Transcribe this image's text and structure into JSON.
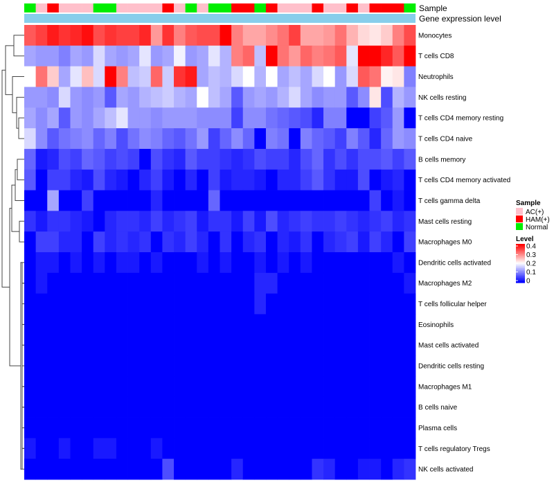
{
  "chart_data": {
    "type": "heatmap",
    "title": "",
    "annotation_labels": {
      "sample": "Sample",
      "gene_expression": "Gene expression level"
    },
    "rows": [
      "Monocytes",
      "T cells CD8",
      "Neutrophils",
      "NK cells resting",
      "T cells CD4 memory resting",
      "T cells CD4 naive",
      "B cells memory",
      "T cells CD4 memory activated",
      "T cells gamma delta",
      "Mast cells resting",
      "Macrophages M0",
      "Dendritic cells activated",
      "Macrophages M2",
      "T cells follicular helper",
      "Eosinophils",
      "Mast cells activated",
      "Dendritic cells resting",
      "Macrophages M1",
      "B cells naive",
      "Plasma cells",
      "T cells regulatory  Tregs",
      "NK cells activated"
    ],
    "sample_groups": [
      "Normal",
      "AC(+)",
      "HAM(+)",
      "AC(+)",
      "AC(+)",
      "AC(+)",
      "Normal",
      "Normal",
      "AC(+)",
      "AC(+)",
      "AC(+)",
      "AC(+)",
      "HAM(+)",
      "AC(+)",
      "Normal",
      "AC(+)",
      "Normal",
      "Normal",
      "HAM(+)",
      "HAM(+)",
      "Normal",
      "HAM(+)",
      "AC(+)",
      "AC(+)",
      "AC(+)",
      "HAM(+)",
      "AC(+)",
      "AC(+)",
      "HAM(+)",
      "AC(+)",
      "HAM(+)",
      "HAM(+)",
      "HAM(+)",
      "Normal"
    ],
    "values": [
      [
        0.33,
        0.35,
        0.38,
        0.36,
        0.37,
        0.39,
        0.34,
        0.36,
        0.35,
        0.35,
        0.37,
        0.28,
        0.36,
        0.3,
        0.33,
        0.34,
        0.34,
        0.4,
        0.3,
        0.27,
        0.27,
        0.29,
        0.31,
        0.35,
        0.27,
        0.27,
        0.28,
        0.31,
        0.26,
        0.23,
        0.22,
        0.24,
        0.3,
        0.34
      ],
      [
        0.13,
        0.12,
        0.12,
        0.1,
        0.13,
        0.12,
        0.17,
        0.13,
        0.12,
        0.13,
        0.18,
        0.12,
        0.13,
        0.19,
        0.12,
        0.13,
        0.18,
        0.14,
        0.3,
        0.32,
        0.15,
        0.4,
        0.31,
        0.28,
        0.32,
        0.3,
        0.31,
        0.33,
        0.18,
        0.42,
        0.42,
        0.37,
        0.33,
        0.42
      ],
      [
        0.2,
        0.31,
        0.24,
        0.13,
        0.18,
        0.25,
        0.17,
        0.41,
        0.3,
        0.15,
        0.16,
        0.32,
        0.16,
        0.36,
        0.38,
        0.13,
        0.15,
        0.14,
        0.17,
        0.2,
        0.14,
        0.2,
        0.13,
        0.15,
        0.13,
        0.17,
        0.2,
        0.12,
        0.17,
        0.33,
        0.31,
        0.21,
        0.22,
        0.1
      ],
      [
        0.12,
        0.12,
        0.11,
        0.17,
        0.12,
        0.11,
        0.12,
        0.07,
        0.13,
        0.12,
        0.14,
        0.15,
        0.16,
        0.14,
        0.13,
        0.2,
        0.15,
        0.13,
        0.07,
        0.12,
        0.13,
        0.12,
        0.14,
        0.17,
        0.13,
        0.11,
        0.12,
        0.12,
        0.07,
        0.11,
        0.22,
        0.06,
        0.14,
        0.12
      ],
      [
        0.13,
        0.11,
        0.13,
        0.07,
        0.12,
        0.11,
        0.13,
        0.15,
        0.18,
        0.12,
        0.12,
        0.11,
        0.12,
        0.12,
        0.12,
        0.11,
        0.11,
        0.11,
        0.05,
        0.11,
        0.11,
        0.09,
        0.08,
        0.07,
        0.06,
        0.03,
        0.1,
        0.1,
        0.0,
        0.0,
        0.05,
        0.07,
        0.12,
        0.0
      ],
      [
        0.17,
        0.11,
        0.07,
        0.09,
        0.1,
        0.11,
        0.08,
        0.1,
        0.06,
        0.09,
        0.11,
        0.1,
        0.08,
        0.07,
        0.09,
        0.12,
        0.05,
        0.08,
        0.11,
        0.08,
        0.0,
        0.1,
        0.09,
        0.0,
        0.1,
        0.08,
        0.07,
        0.05,
        0.1,
        0.07,
        0.03,
        0.08,
        0.12,
        0.11
      ],
      [
        0.08,
        0.02,
        0.03,
        0.06,
        0.05,
        0.08,
        0.07,
        0.05,
        0.06,
        0.05,
        0.0,
        0.06,
        0.04,
        0.03,
        0.07,
        0.05,
        0.05,
        0.04,
        0.03,
        0.04,
        0.06,
        0.05,
        0.05,
        0.03,
        0.06,
        0.08,
        0.04,
        0.06,
        0.04,
        0.06,
        0.06,
        0.07,
        0.05,
        0.07
      ],
      [
        0.07,
        0.0,
        0.05,
        0.05,
        0.03,
        0.02,
        0.06,
        0.03,
        0.02,
        0.0,
        0.03,
        0.05,
        0.02,
        0.0,
        0.03,
        0.0,
        0.05,
        0.02,
        0.03,
        0.03,
        0.02,
        0.0,
        0.03,
        0.03,
        0.05,
        0.07,
        0.04,
        0.02,
        0.02,
        0.06,
        0.0,
        0.02,
        0.03,
        0.0
      ],
      [
        0.0,
        0.0,
        0.13,
        0.0,
        0.0,
        0.05,
        0.0,
        0.0,
        0.0,
        0.0,
        0.0,
        0.03,
        0.0,
        0.0,
        0.0,
        0.0,
        0.08,
        0.0,
        0.0,
        0.0,
        0.0,
        0.0,
        0.0,
        0.0,
        0.0,
        0.0,
        0.0,
        0.0,
        0.0,
        0.0,
        0.05,
        0.0,
        0.02,
        0.0
      ],
      [
        0.04,
        0.02,
        0.04,
        0.04,
        0.03,
        0.02,
        0.0,
        0.03,
        0.04,
        0.04,
        0.03,
        0.05,
        0.03,
        0.04,
        0.05,
        0.02,
        0.04,
        0.04,
        0.02,
        0.05,
        0.02,
        0.06,
        0.03,
        0.04,
        0.05,
        0.04,
        0.04,
        0.05,
        0.04,
        0.03,
        0.04,
        0.05,
        0.03,
        0.04
      ],
      [
        0.0,
        0.05,
        0.05,
        0.03,
        0.03,
        0.0,
        0.05,
        0.03,
        0.04,
        0.03,
        0.04,
        0.0,
        0.04,
        0.03,
        0.05,
        0.03,
        0.0,
        0.04,
        0.0,
        0.03,
        0.04,
        0.0,
        0.03,
        0.02,
        0.04,
        0.0,
        0.03,
        0.04,
        0.05,
        0.02,
        0.05,
        0.03,
        0.0,
        0.05
      ],
      [
        0.0,
        0.02,
        0.02,
        0.0,
        0.02,
        0.0,
        0.02,
        0.0,
        0.02,
        0.02,
        0.0,
        0.02,
        0.0,
        0.0,
        0.0,
        0.02,
        0.0,
        0.02,
        0.0,
        0.0,
        0.02,
        0.0,
        0.02,
        0.0,
        0.02,
        0.0,
        0.0,
        0.0,
        0.0,
        0.0,
        0.0,
        0.0,
        0.02,
        0.0
      ],
      [
        0.0,
        0.02,
        0.0,
        0.0,
        0.0,
        0.0,
        0.0,
        0.0,
        0.0,
        0.0,
        0.0,
        0.0,
        0.0,
        0.0,
        0.0,
        0.0,
        0.0,
        0.0,
        0.0,
        0.0,
        0.03,
        0.03,
        0.0,
        0.0,
        0.0,
        0.0,
        0.0,
        0.0,
        0.0,
        0.0,
        0.0,
        0.0,
        0.0,
        0.02
      ],
      [
        0.0,
        0.0,
        0.0,
        0.0,
        0.0,
        0.0,
        0.0,
        0.0,
        0.0,
        0.0,
        0.0,
        0.0,
        0.0,
        0.0,
        0.0,
        0.0,
        0.0,
        0.0,
        0.0,
        0.0,
        0.03,
        0.0,
        0.0,
        0.0,
        0.0,
        0.0,
        0.0,
        0.0,
        0.0,
        0.0,
        0.0,
        0.0,
        0.0,
        0.0
      ],
      [
        0.0,
        0.0,
        0.0,
        0.0,
        0.0,
        0.0,
        0.0,
        0.0,
        0.0,
        0.0,
        0.0,
        0.0,
        0.0,
        0.0,
        0.0,
        0.0,
        0.0,
        0.0,
        0.0,
        0.0,
        0.0,
        0.0,
        0.0,
        0.0,
        0.0,
        0.0,
        0.0,
        0.0,
        0.0,
        0.0,
        0.0,
        0.0,
        0.0,
        0.0
      ],
      [
        0.0,
        0.0,
        0.0,
        0.0,
        0.0,
        0.0,
        0.0,
        0.0,
        0.0,
        0.0,
        0.0,
        0.0,
        0.0,
        0.0,
        0.0,
        0.0,
        0.0,
        0.0,
        0.0,
        0.0,
        0.0,
        0.0,
        0.0,
        0.0,
        0.0,
        0.0,
        0.0,
        0.0,
        0.0,
        0.0,
        0.0,
        0.0,
        0.0,
        0.0
      ],
      [
        0.0,
        0.0,
        0.0,
        0.0,
        0.0,
        0.0,
        0.0,
        0.0,
        0.0,
        0.0,
        0.0,
        0.0,
        0.0,
        0.0,
        0.0,
        0.0,
        0.0,
        0.0,
        0.0,
        0.0,
        0.0,
        0.0,
        0.0,
        0.0,
        0.0,
        0.0,
        0.0,
        0.0,
        0.0,
        0.0,
        0.0,
        0.0,
        0.0,
        0.0
      ],
      [
        0.0,
        0.0,
        0.0,
        0.0,
        0.0,
        0.0,
        0.0,
        0.0,
        0.0,
        0.0,
        0.0,
        0.0,
        0.0,
        0.0,
        0.0,
        0.0,
        0.0,
        0.0,
        0.0,
        0.0,
        0.0,
        0.0,
        0.0,
        0.0,
        0.0,
        0.0,
        0.0,
        0.0,
        0.0,
        0.0,
        0.0,
        0.0,
        0.0,
        0.0
      ],
      [
        0.0,
        0.0,
        0.0,
        0.0,
        0.0,
        0.0,
        0.0,
        0.0,
        0.0,
        0.0,
        0.0,
        0.0,
        0.0,
        0.0,
        0.0,
        0.0,
        0.0,
        0.0,
        0.0,
        0.0,
        0.0,
        0.0,
        0.0,
        0.0,
        0.0,
        0.0,
        0.0,
        0.0,
        0.0,
        0.0,
        0.0,
        0.0,
        0.0,
        0.0
      ],
      [
        0.0,
        0.0,
        0.0,
        0.0,
        0.0,
        0.0,
        0.0,
        0.0,
        0.0,
        0.0,
        0.0,
        0.0,
        0.0,
        0.0,
        0.0,
        0.0,
        0.0,
        0.0,
        0.0,
        0.0,
        0.0,
        0.0,
        0.0,
        0.0,
        0.0,
        0.0,
        0.0,
        0.0,
        0.0,
        0.0,
        0.0,
        0.0,
        0.0,
        0.0
      ],
      [
        0.02,
        0.0,
        0.0,
        0.02,
        0.0,
        0.0,
        0.02,
        0.02,
        0.0,
        0.0,
        0.0,
        0.02,
        0.0,
        0.0,
        0.0,
        0.0,
        0.0,
        0.0,
        0.0,
        0.0,
        0.0,
        0.0,
        0.0,
        0.0,
        0.0,
        0.0,
        0.0,
        0.0,
        0.0,
        0.0,
        0.0,
        0.0,
        0.0,
        0.0
      ],
      [
        0.0,
        0.0,
        0.0,
        0.0,
        0.0,
        0.0,
        0.0,
        0.0,
        0.0,
        0.0,
        0.0,
        0.0,
        0.06,
        0.0,
        0.0,
        0.0,
        0.0,
        0.0,
        0.03,
        0.0,
        0.0,
        0.0,
        0.0,
        0.0,
        0.0,
        0.04,
        0.03,
        0.0,
        0.0,
        0.02,
        0.02,
        0.0,
        0.03,
        0.04
      ]
    ],
    "legend": {
      "sample_title": "Sample",
      "sample_items": [
        {
          "label": "AC(+)",
          "color": "#FFC0CB"
        },
        {
          "label": "HAM(+)",
          "color": "#FF0000"
        },
        {
          "label": "Normal",
          "color": "#00EE00"
        }
      ],
      "level_title": "Level",
      "level_ticks": [
        "0.4",
        "0.3",
        "0.2",
        "0.1",
        "0"
      ],
      "level_range": [
        0,
        0.4
      ]
    },
    "colors": {
      "low": "#0000FF",
      "mid": "#FFFFFF",
      "high": "#FF0000",
      "gene_expression_bar": "#87CEEB"
    }
  }
}
